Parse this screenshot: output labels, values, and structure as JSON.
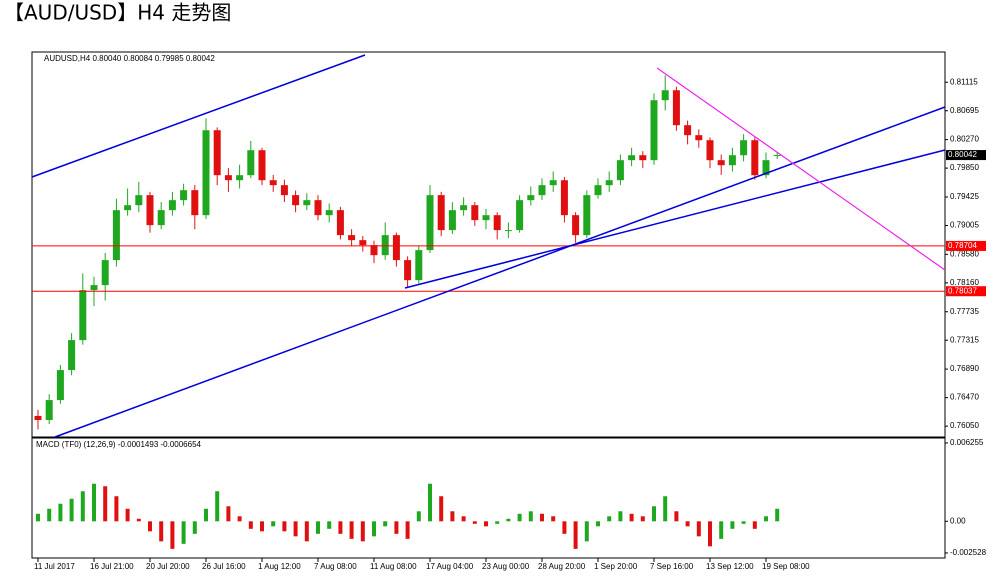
{
  "chart_data": [
    {
      "type": "candlestick",
      "title": "【AUD/USD】H4 走势图",
      "subtitle": "AUDUSD,H4  0.80040 0.80084 0.79985 0.80042",
      "categories": [
        "11 Jul 2017",
        null,
        null,
        null,
        null,
        "16 Jul 21:00",
        null,
        null,
        null,
        null,
        "20 Jul 20:00",
        null,
        null,
        null,
        null,
        "26 Jul 16:00",
        null,
        null,
        null,
        null,
        "1 Aug 12:00",
        null,
        null,
        null,
        null,
        "7 Aug 08:00",
        null,
        null,
        null,
        null,
        "11 Aug 08:00",
        null,
        null,
        null,
        null,
        "17 Aug 04:00",
        null,
        null,
        null,
        null,
        "23 Aug 00:00",
        null,
        null,
        null,
        null,
        "28 Aug 20:00",
        null,
        null,
        null,
        null,
        "1 Sep 20:00",
        null,
        null,
        null,
        null,
        "7 Sep 16:00",
        null,
        null,
        null,
        null,
        "13 Sep 12:00",
        null,
        null,
        null,
        null,
        "19 Sep 08:00",
        null
      ],
      "open": [
        0.762,
        0.7614,
        0.76434,
        0.76876,
        0.77317,
        0.78053,
        0.78127,
        0.78495,
        0.79231,
        0.79304,
        0.79452,
        0.7901,
        0.79231,
        0.79378,
        0.79525,
        0.79157,
        0.80408,
        0.79746,
        0.79672,
        0.79746,
        0.80114,
        0.79672,
        0.79599,
        0.79452,
        0.79304,
        0.79378,
        0.79157,
        0.79231,
        0.78863,
        0.78789,
        0.78716,
        0.78568,
        0.78863,
        0.78495,
        0.782,
        0.78642,
        0.79452,
        0.78937,
        0.79231,
        0.79304,
        0.79084,
        0.79157,
        0.78937,
        0.78937,
        0.79378,
        0.79452,
        0.79599,
        0.79672,
        0.79157,
        0.78863,
        0.79452,
        0.79599,
        0.79672,
        0.79967,
        0.8004,
        0.79967,
        0.8085,
        0.80997,
        0.80482,
        0.80335,
        0.80261,
        0.79967,
        0.79893,
        0.8004,
        0.80261,
        0.79746,
        0.8004
      ],
      "high": [
        0.7629,
        0.7652,
        0.7695,
        0.7742,
        0.783,
        0.7825,
        0.786,
        0.794,
        0.7955,
        0.7965,
        0.795,
        0.7935,
        0.795,
        0.7962,
        0.796,
        0.80585,
        0.8045,
        0.7985,
        0.799,
        0.8025,
        0.8015,
        0.7975,
        0.7968,
        0.7952,
        0.7948,
        0.7945,
        0.7933,
        0.7928,
        0.7895,
        0.7885,
        0.7878,
        0.7905,
        0.789,
        0.7855,
        0.787,
        0.796,
        0.795,
        0.7935,
        0.7942,
        0.7935,
        0.7925,
        0.792,
        0.7905,
        0.7945,
        0.7958,
        0.797,
        0.798,
        0.7972,
        0.792,
        0.7952,
        0.797,
        0.798,
        0.8005,
        0.8015,
        0.801,
        0.8095,
        0.81218,
        0.8105,
        0.8055,
        0.8042,
        0.803,
        0.8005,
        0.8015,
        0.8035,
        0.803,
        0.8008,
        0.80084
      ],
      "low": [
        0.76,
        0.7608,
        0.7638,
        0.768,
        0.7725,
        0.7782,
        0.779,
        0.784,
        0.7915,
        0.792,
        0.789,
        0.7895,
        0.7915,
        0.793,
        0.7895,
        0.791,
        0.796,
        0.795,
        0.7955,
        0.797,
        0.796,
        0.795,
        0.7935,
        0.792,
        0.7923,
        0.7908,
        0.7905,
        0.788,
        0.787,
        0.7862,
        0.7845,
        0.785,
        0.784,
        0.78083,
        0.7815,
        0.786,
        0.7885,
        0.7888,
        0.7915,
        0.79,
        0.7895,
        0.788,
        0.7882,
        0.789,
        0.793,
        0.7938,
        0.795,
        0.7905,
        0.7875,
        0.7882,
        0.794,
        0.795,
        0.796,
        0.7988,
        0.7985,
        0.799,
        0.807,
        0.804,
        0.802,
        0.8015,
        0.7985,
        0.7975,
        0.798,
        0.7995,
        0.7968,
        0.797,
        0.79985
      ],
      "close": [
        0.7614,
        0.76434,
        0.76876,
        0.77317,
        0.78053,
        0.78127,
        0.78495,
        0.79231,
        0.79304,
        0.79452,
        0.7901,
        0.79231,
        0.79378,
        0.79525,
        0.79157,
        0.80408,
        0.79746,
        0.79672,
        0.79746,
        0.80114,
        0.79672,
        0.79599,
        0.79452,
        0.79304,
        0.79378,
        0.79157,
        0.79231,
        0.78863,
        0.78789,
        0.78716,
        0.78568,
        0.78863,
        0.78495,
        0.782,
        0.78642,
        0.79452,
        0.78937,
        0.79231,
        0.79304,
        0.79084,
        0.79157,
        0.78937,
        0.78937,
        0.79378,
        0.79452,
        0.79599,
        0.79672,
        0.79157,
        0.78863,
        0.79452,
        0.79599,
        0.79672,
        0.79967,
        0.8004,
        0.79967,
        0.8085,
        0.80997,
        0.80482,
        0.80335,
        0.80261,
        0.79967,
        0.79893,
        0.8004,
        0.80261,
        0.79746,
        0.79967,
        0.80042
      ],
      "up_color": "#1fa81f",
      "down_color": "#e01010",
      "ylim": [
        0.7589,
        0.8156
      ],
      "yticks": [
        0.81115,
        0.80695,
        {
          "value": 0.8027,
          "label": "0.80270"
        },
        {
          "value": 0.7985,
          "label": "0.79850"
        },
        0.79425,
        0.79005,
        {
          "value": 0.7858,
          "label": "0.78580"
        },
        {
          "value": 0.7816,
          "label": "0.78160"
        },
        0.77735,
        0.77315,
        {
          "value": 0.7689,
          "label": "0.76890"
        },
        {
          "value": 0.7647,
          "label": "0.76470"
        },
        {
          "value": 0.7605,
          "label": "0.76050"
        }
      ],
      "hlines": [
        0.78704,
        0.78037
      ],
      "hline_color": "#ff0000"
    },
    {
      "type": "bar",
      "title": "MACD (TF0) (12,26,9) -0.0001493 -0.0006654",
      "values": [
        0.0006,
        0.001,
        0.0014,
        0.0018,
        0.0024,
        0.003,
        0.0028,
        0.002,
        0.001,
        0.0002,
        -0.0008,
        -0.0016,
        -0.0022,
        -0.0018,
        -0.001,
        0.001,
        0.0024,
        0.0012,
        0.0004,
        -0.0006,
        -0.0008,
        -0.0004,
        -0.0008,
        -0.0012,
        -0.0016,
        -0.001,
        -0.0006,
        -0.001,
        -0.0014,
        -0.0016,
        -0.0012,
        -0.0004,
        -0.001,
        -0.0014,
        0.0008,
        0.003,
        0.002,
        0.0008,
        0.0004,
        -0.0002,
        -0.0004,
        -0.0002,
        0.0002,
        0.0006,
        0.0008,
        0.0006,
        0.0004,
        -0.001,
        -0.0022,
        -0.0016,
        -0.0004,
        0.0004,
        0.0008,
        0.0006,
        0.0004,
        0.0012,
        0.002,
        0.0008,
        -0.0004,
        -0.0012,
        -0.002,
        -0.0014,
        -0.0006,
        -0.0002,
        -0.0006,
        0.0004,
        0.001
      ],
      "up_color": "#1fa81f",
      "down_color": "#e01010",
      "ylim": [
        -0.00293,
        0.00665
      ],
      "yticks": [
        0.006255,
        {
          "value": 0,
          "label": "0.00"
        },
        -0.002528
      ]
    }
  ]
}
